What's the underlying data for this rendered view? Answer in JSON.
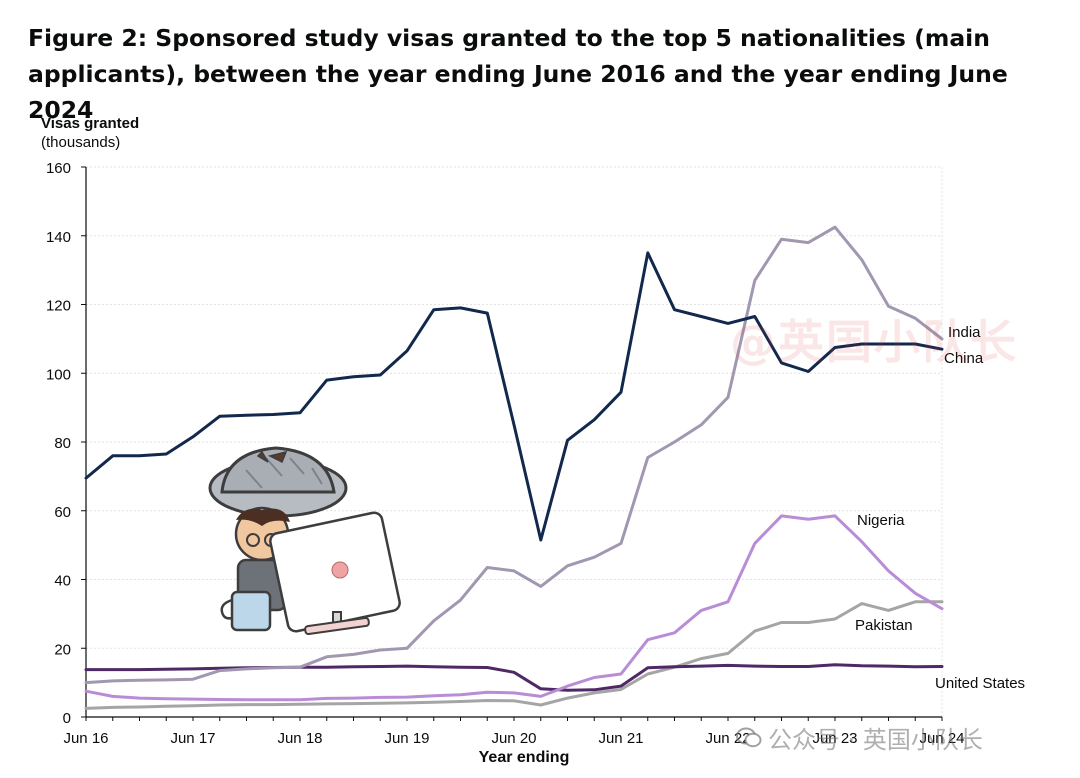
{
  "title": "Figure 2: Sponsored study visas granted to the top 5 nationalities (main applicants), between the year ending June 2016 and the year ending June 2024",
  "watermark": {
    "top": "@英国小队长",
    "bottom": "公众号 · 英国小队长"
  },
  "chart_data": {
    "type": "line",
    "ylabel_line1": "Visas granted",
    "ylabel_line2": "(thousands)",
    "xlabel": "Year ending",
    "ylim": [
      0,
      160
    ],
    "yticks": [
      0,
      20,
      40,
      60,
      80,
      100,
      120,
      140,
      160
    ],
    "grid": true,
    "x_tick_labels": [
      "Jun 16",
      "Jun 17",
      "Jun 18",
      "Jun 19",
      "Jun 20",
      "Jun 21",
      "Jun 22",
      "Jun 23",
      "Jun 24"
    ],
    "x_quarters": [
      "Jun 16",
      "Sep 16",
      "Dec 16",
      "Mar 17",
      "Jun 17",
      "Sep 17",
      "Dec 17",
      "Mar 18",
      "Jun 18",
      "Sep 18",
      "Dec 18",
      "Mar 19",
      "Jun 19",
      "Sep 19",
      "Dec 19",
      "Mar 20",
      "Jun 20",
      "Sep 20",
      "Dec 20",
      "Mar 21",
      "Jun 21",
      "Sep 21",
      "Dec 21",
      "Mar 22",
      "Jun 22",
      "Sep 22",
      "Dec 22",
      "Mar 23",
      "Jun 23",
      "Sep 23",
      "Dec 23",
      "Mar 24",
      "Jun 24"
    ],
    "series": [
      {
        "name": "China",
        "color": "#12284c",
        "values": [
          69.5,
          76,
          76,
          76.5,
          81.5,
          87.5,
          87.8,
          88,
          88.5,
          98,
          99,
          99.5,
          106.5,
          118.5,
          119,
          117.5,
          85,
          51.5,
          80.5,
          86.5,
          94.5,
          135,
          118.5,
          116.5,
          114.5,
          116.5,
          103,
          100.5,
          107.5,
          108.5,
          108.5,
          108.5,
          107
        ]
      },
      {
        "name": "India",
        "color": "#a297b1",
        "values": [
          10,
          10.5,
          10.7,
          10.8,
          11,
          13.5,
          14,
          14.3,
          14.5,
          17.5,
          18.2,
          19.5,
          20,
          28,
          34,
          43.5,
          42.5,
          38,
          44,
          46.5,
          50.5,
          75.5,
          80,
          85,
          93,
          127,
          139,
          138,
          142.5,
          133,
          119.5,
          116,
          110
        ]
      },
      {
        "name": "Nigeria",
        "color": "#b98cd6",
        "values": [
          7.5,
          6,
          5.5,
          5.3,
          5.2,
          5.1,
          5,
          5,
          5,
          5.4,
          5.5,
          5.7,
          5.8,
          6.2,
          6.5,
          7.2,
          7,
          6,
          9,
          11.5,
          12.5,
          22.5,
          24.5,
          31,
          33.5,
          50.5,
          58.5,
          57.5,
          58.5,
          51,
          42.5,
          36,
          31.5
        ]
      },
      {
        "name": "Pakistan",
        "color": "#a5a5a5",
        "values": [
          2.5,
          2.8,
          2.9,
          3.1,
          3.3,
          3.5,
          3.6,
          3.6,
          3.7,
          3.8,
          3.9,
          4,
          4.1,
          4.3,
          4.5,
          4.8,
          4.7,
          3.5,
          5.5,
          7,
          8,
          12.5,
          14.5,
          17,
          18.5,
          25,
          27.5,
          27.5,
          28.5,
          33,
          31,
          33.5,
          33.5
        ]
      },
      {
        "name": "United States",
        "color": "#4f2966",
        "values": [
          13.8,
          13.8,
          13.8,
          13.9,
          14,
          14.2,
          14.3,
          14.4,
          14.5,
          14.5,
          14.6,
          14.7,
          14.8,
          14.6,
          14.5,
          14.4,
          13,
          8.2,
          7.8,
          7.9,
          9,
          14.3,
          14.6,
          14.8,
          15,
          14.8,
          14.7,
          14.7,
          15.2,
          14.9,
          14.8,
          14.6,
          14.7
        ]
      }
    ]
  }
}
